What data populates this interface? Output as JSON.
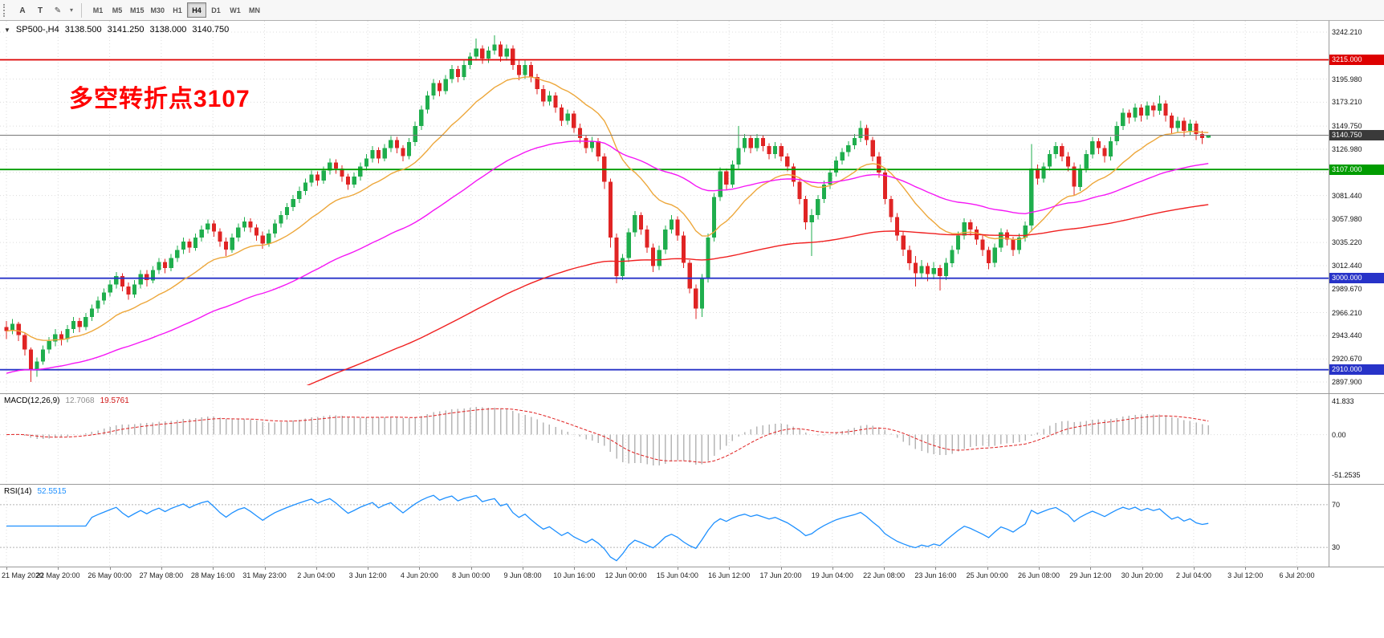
{
  "toolbar": {
    "tools": [
      {
        "name": "text-label-tool-button",
        "label": "A"
      },
      {
        "name": "text-box-tool-button",
        "label": "T"
      },
      {
        "name": "draw-tool-button",
        "label": "✎"
      }
    ],
    "caret": "▾",
    "timeframes": [
      "M1",
      "M5",
      "M15",
      "M30",
      "H1",
      "H4",
      "D1",
      "W1",
      "MN"
    ],
    "active_timeframe": "H4"
  },
  "chart_header": {
    "dropdown_icon": "▼",
    "symbol": "SP500-,H4",
    "open": "3138.500",
    "high": "3141.250",
    "low": "3138.000",
    "close": "3140.750"
  },
  "annotation": {
    "text": "多空转折点3107",
    "color": "#ff0000"
  },
  "price_line": {
    "value": 3140.75,
    "label": "3140.750",
    "box_color": "#3a3a3a"
  },
  "hlines": [
    {
      "value": 3215.0,
      "label": "3215.000",
      "color": "#dd0000"
    },
    {
      "value": 3107.0,
      "label": "3107.000",
      "color": "#009c00"
    },
    {
      "value": 3000.0,
      "label": "3000.000",
      "color": "#2733c8"
    },
    {
      "value": 2910.0,
      "label": "2910.000",
      "color": "#2733c8"
    }
  ],
  "price_axis": {
    "labels": [
      "3242.210",
      "3195.980",
      "3173.210",
      "3149.750",
      "3126.980",
      "3104.220",
      "3081.440",
      "3057.980",
      "3035.220",
      "3012.440",
      "2989.670",
      "2966.210",
      "2943.440",
      "2920.670",
      "2897.900"
    ]
  },
  "time_axis": {
    "labels": [
      "21 May 2020",
      "22 May 20:00",
      "26 May 00:00",
      "27 May 08:00",
      "28 May 16:00",
      "31 May 23:00",
      "2 Jun 04:00",
      "3 Jun 12:00",
      "4 Jun 20:00",
      "8 Jun 00:00",
      "9 Jun 08:00",
      "10 Jun 16:00",
      "12 Jun 00:00",
      "15 Jun 04:00",
      "16 Jun 12:00",
      "17 Jun 20:00",
      "19 Jun 04:00",
      "22 Jun 08:00",
      "23 Jun 16:00",
      "25 Jun 00:00",
      "26 Jun 08:00",
      "29 Jun 12:00",
      "30 Jun 20:00",
      "2 Jul 04:00",
      "3 Jul 12:00",
      "6 Jul 20:00"
    ]
  },
  "macd": {
    "title": "MACD(12,26,9)",
    "main_value": "12.7068",
    "signal_value": "19.5761",
    "axis_labels": [
      "41.833",
      "0.00",
      "-51.2535"
    ],
    "params": {
      "fast": 12,
      "slow": 26,
      "signal": 9
    },
    "range": {
      "max": 45,
      "min": -57
    },
    "histogram_color": "#b6b6b6",
    "signal_color": "#e02020"
  },
  "rsi": {
    "title": "RSI(14)",
    "value": "52.5515",
    "period": 14,
    "levels": [
      "70",
      "30"
    ],
    "line_color": "#1e90ff",
    "range": {
      "max": 85,
      "min": 15
    }
  },
  "chart_data": {
    "type": "candlestick",
    "symbol": "SP500-",
    "timeframe": "H4",
    "ylim": [
      2897.9,
      3242.21
    ],
    "colors": {
      "bull": "#1fae4d",
      "bear": "#e02424"
    },
    "moving_averages": [
      {
        "name": "fast-ma",
        "period": 18,
        "color": "#eda73b",
        "seed": null
      },
      {
        "name": "mid-ma",
        "period": 60,
        "color": "#f516f5",
        "seed": 2905
      },
      {
        "name": "slow-ma",
        "period": 160,
        "color": "#f02020",
        "seed": 2790
      }
    ],
    "candles": [
      [
        2952,
        2958,
        2940,
        2948
      ],
      [
        2948,
        2960,
        2945,
        2955
      ],
      [
        2955,
        2957,
        2938,
        2944
      ],
      [
        2944,
        2946,
        2924,
        2930
      ],
      [
        2930,
        2932,
        2898,
        2910
      ],
      [
        2910,
        2922,
        2903,
        2918
      ],
      [
        2918,
        2934,
        2915,
        2930
      ],
      [
        2930,
        2942,
        2926,
        2938
      ],
      [
        2938,
        2950,
        2933,
        2945
      ],
      [
        2945,
        2948,
        2934,
        2940
      ],
      [
        2940,
        2954,
        2937,
        2950
      ],
      [
        2950,
        2962,
        2946,
        2958
      ],
      [
        2958,
        2961,
        2947,
        2952
      ],
      [
        2952,
        2966,
        2949,
        2962
      ],
      [
        2962,
        2974,
        2958,
        2970
      ],
      [
        2970,
        2982,
        2966,
        2978
      ],
      [
        2978,
        2990,
        2974,
        2986
      ],
      [
        2986,
        2998,
        2982,
        2994
      ],
      [
        2994,
        3006,
        2990,
        3002
      ],
      [
        3002,
        3005,
        2987,
        2992
      ],
      [
        2992,
        2996,
        2979,
        2984
      ],
      [
        2984,
        2998,
        2981,
        2994
      ],
      [
        2994,
        3008,
        2990,
        3004
      ],
      [
        3004,
        3008,
        2992,
        2998
      ],
      [
        2998,
        3012,
        2995,
        3008
      ],
      [
        3008,
        3020,
        3004,
        3016
      ],
      [
        3016,
        3019,
        3005,
        3010
      ],
      [
        3010,
        3024,
        3007,
        3020
      ],
      [
        3020,
        3032,
        3016,
        3028
      ],
      [
        3028,
        3040,
        3024,
        3036
      ],
      [
        3036,
        3039,
        3025,
        3030
      ],
      [
        3030,
        3044,
        3027,
        3040
      ],
      [
        3040,
        3052,
        3036,
        3048
      ],
      [
        3048,
        3058,
        3044,
        3054
      ],
      [
        3054,
        3057,
        3041,
        3046
      ],
      [
        3046,
        3049,
        3031,
        3036
      ],
      [
        3036,
        3040,
        3022,
        3028
      ],
      [
        3028,
        3044,
        3025,
        3040
      ],
      [
        3040,
        3054,
        3036,
        3050
      ],
      [
        3050,
        3060,
        3046,
        3056
      ],
      [
        3056,
        3059,
        3045,
        3050
      ],
      [
        3050,
        3053,
        3037,
        3042
      ],
      [
        3042,
        3046,
        3029,
        3034
      ],
      [
        3034,
        3048,
        3031,
        3044
      ],
      [
        3044,
        3058,
        3040,
        3054
      ],
      [
        3054,
        3066,
        3050,
        3062
      ],
      [
        3062,
        3074,
        3058,
        3070
      ],
      [
        3070,
        3082,
        3066,
        3078
      ],
      [
        3078,
        3090,
        3074,
        3086
      ],
      [
        3086,
        3098,
        3082,
        3094
      ],
      [
        3094,
        3106,
        3090,
        3102
      ],
      [
        3102,
        3105,
        3091,
        3096
      ],
      [
        3096,
        3110,
        3093,
        3106
      ],
      [
        3106,
        3118,
        3102,
        3114
      ],
      [
        3114,
        3117,
        3103,
        3108
      ],
      [
        3108,
        3111,
        3095,
        3100
      ],
      [
        3100,
        3103,
        3087,
        3092
      ],
      [
        3092,
        3104,
        3089,
        3100
      ],
      [
        3100,
        3114,
        3096,
        3110
      ],
      [
        3110,
        3122,
        3106,
        3118
      ],
      [
        3118,
        3130,
        3114,
        3126
      ],
      [
        3126,
        3129,
        3113,
        3118
      ],
      [
        3118,
        3132,
        3115,
        3128
      ],
      [
        3128,
        3140,
        3124,
        3136
      ],
      [
        3136,
        3139,
        3123,
        3128
      ],
      [
        3128,
        3131,
        3115,
        3120
      ],
      [
        3120,
        3138,
        3117,
        3134
      ],
      [
        3134,
        3154,
        3130,
        3150
      ],
      [
        3150,
        3170,
        3146,
        3166
      ],
      [
        3166,
        3184,
        3162,
        3180
      ],
      [
        3180,
        3196,
        3176,
        3192
      ],
      [
        3192,
        3195,
        3179,
        3184
      ],
      [
        3184,
        3200,
        3181,
        3196
      ],
      [
        3196,
        3210,
        3192,
        3206
      ],
      [
        3206,
        3209,
        3193,
        3198
      ],
      [
        3198,
        3214,
        3195,
        3210
      ],
      [
        3210,
        3222,
        3206,
        3218
      ],
      [
        3218,
        3236,
        3214,
        3226
      ],
      [
        3226,
        3229,
        3211,
        3216
      ],
      [
        3216,
        3228,
        3212,
        3224
      ],
      [
        3224,
        3239,
        3220,
        3230
      ],
      [
        3230,
        3233,
        3213,
        3218
      ],
      [
        3218,
        3230,
        3214,
        3226
      ],
      [
        3226,
        3229,
        3205,
        3210
      ],
      [
        3210,
        3214,
        3195,
        3200
      ],
      [
        3200,
        3214,
        3196,
        3210
      ],
      [
        3210,
        3213,
        3193,
        3198
      ],
      [
        3198,
        3201,
        3181,
        3186
      ],
      [
        3186,
        3190,
        3169,
        3174
      ],
      [
        3174,
        3184,
        3170,
        3180
      ],
      [
        3180,
        3183,
        3163,
        3168
      ],
      [
        3168,
        3171,
        3150,
        3155
      ],
      [
        3155,
        3166,
        3151,
        3162
      ],
      [
        3162,
        3165,
        3143,
        3148
      ],
      [
        3148,
        3152,
        3133,
        3138
      ],
      [
        3138,
        3141,
        3123,
        3128
      ],
      [
        3128,
        3139,
        3124,
        3135
      ],
      [
        3135,
        3138,
        3115,
        3120
      ],
      [
        3120,
        3123,
        3088,
        3095
      ],
      [
        3095,
        3098,
        3030,
        3040
      ],
      [
        3040,
        3044,
        2995,
        3002
      ],
      [
        3002,
        3024,
        2998,
        3020
      ],
      [
        3020,
        3049,
        3016,
        3045
      ],
      [
        3045,
        3066,
        3041,
        3062
      ],
      [
        3062,
        3065,
        3043,
        3048
      ],
      [
        3048,
        3052,
        3025,
        3030
      ],
      [
        3030,
        3034,
        3006,
        3012
      ],
      [
        3012,
        3032,
        3008,
        3028
      ],
      [
        3028,
        3052,
        3024,
        3048
      ],
      [
        3048,
        3062,
        3044,
        3058
      ],
      [
        3058,
        3061,
        3037,
        3042
      ],
      [
        3042,
        3046,
        3010,
        3015
      ],
      [
        3015,
        3018,
        2985,
        2990
      ],
      [
        2990,
        2994,
        2960,
        2970
      ],
      [
        2970,
        3004,
        2962,
        3000
      ],
      [
        3000,
        3044,
        2996,
        3040
      ],
      [
        3040,
        3084,
        3036,
        3080
      ],
      [
        3080,
        3109,
        3076,
        3105
      ],
      [
        3105,
        3108,
        3087,
        3092
      ],
      [
        3092,
        3116,
        3089,
        3112
      ],
      [
        3112,
        3150,
        3108,
        3128
      ],
      [
        3128,
        3142,
        3124,
        3138
      ],
      [
        3138,
        3141,
        3123,
        3128
      ],
      [
        3128,
        3142,
        3125,
        3138
      ],
      [
        3138,
        3141,
        3125,
        3130
      ],
      [
        3130,
        3133,
        3117,
        3122
      ],
      [
        3122,
        3134,
        3118,
        3130
      ],
      [
        3130,
        3133,
        3115,
        3120
      ],
      [
        3120,
        3123,
        3105,
        3110
      ],
      [
        3110,
        3113,
        3090,
        3095
      ],
      [
        3095,
        3098,
        3073,
        3078
      ],
      [
        3078,
        3081,
        3048,
        3055
      ],
      [
        3055,
        3068,
        3022,
        3062
      ],
      [
        3062,
        3082,
        3058,
        3078
      ],
      [
        3078,
        3096,
        3074,
        3092
      ],
      [
        3092,
        3108,
        3088,
        3104
      ],
      [
        3104,
        3120,
        3100,
        3116
      ],
      [
        3116,
        3128,
        3112,
        3124
      ],
      [
        3124,
        3135,
        3120,
        3131
      ],
      [
        3131,
        3142,
        3127,
        3138
      ],
      [
        3138,
        3155,
        3134,
        3148
      ],
      [
        3148,
        3151,
        3131,
        3136
      ],
      [
        3136,
        3139,
        3115,
        3120
      ],
      [
        3120,
        3124,
        3099,
        3104
      ],
      [
        3104,
        3108,
        3073,
        3078
      ],
      [
        3078,
        3081,
        3055,
        3060
      ],
      [
        3060,
        3064,
        3037,
        3042
      ],
      [
        3042,
        3046,
        3022,
        3028
      ],
      [
        3028,
        3032,
        3008,
        3015
      ],
      [
        3015,
        3022,
        2992,
        3005
      ],
      [
        3005,
        3018,
        3000,
        3012
      ],
      [
        3012,
        3015,
        2997,
        3004
      ],
      [
        3004,
        3016,
        2999,
        3010
      ],
      [
        3010,
        3013,
        2988,
        3002
      ],
      [
        3002,
        3020,
        2998,
        3015
      ],
      [
        3015,
        3032,
        3011,
        3028
      ],
      [
        3028,
        3046,
        3024,
        3042
      ],
      [
        3042,
        3059,
        3038,
        3055
      ],
      [
        3055,
        3058,
        3042,
        3048
      ],
      [
        3048,
        3051,
        3033,
        3038
      ],
      [
        3038,
        3042,
        3022,
        3028
      ],
      [
        3028,
        3031,
        3009,
        3015
      ],
      [
        3015,
        3034,
        3011,
        3030
      ],
      [
        3030,
        3049,
        3026,
        3045
      ],
      [
        3045,
        3048,
        3032,
        3038
      ],
      [
        3038,
        3041,
        3022,
        3028
      ],
      [
        3028,
        3044,
        3024,
        3040
      ],
      [
        3040,
        3056,
        3036,
        3052
      ],
      [
        3052,
        3132,
        3046,
        3108
      ],
      [
        3108,
        3112,
        3092,
        3098
      ],
      [
        3098,
        3114,
        3094,
        3110
      ],
      [
        3110,
        3126,
        3106,
        3122
      ],
      [
        3122,
        3134,
        3118,
        3130
      ],
      [
        3130,
        3133,
        3115,
        3120
      ],
      [
        3120,
        3124,
        3105,
        3110
      ],
      [
        3110,
        3114,
        3082,
        3090
      ],
      [
        3090,
        3112,
        3086,
        3108
      ],
      [
        3108,
        3126,
        3104,
        3122
      ],
      [
        3122,
        3139,
        3118,
        3135
      ],
      [
        3135,
        3138,
        3122,
        3128
      ],
      [
        3128,
        3131,
        3114,
        3120
      ],
      [
        3120,
        3139,
        3116,
        3135
      ],
      [
        3135,
        3154,
        3131,
        3150
      ],
      [
        3150,
        3167,
        3146,
        3163
      ],
      [
        3163,
        3166,
        3152,
        3158
      ],
      [
        3158,
        3172,
        3154,
        3168
      ],
      [
        3168,
        3171,
        3154,
        3160
      ],
      [
        3160,
        3174,
        3156,
        3170
      ],
      [
        3170,
        3173,
        3159,
        3165
      ],
      [
        3165,
        3180,
        3161,
        3172
      ],
      [
        3172,
        3175,
        3154,
        3160
      ],
      [
        3160,
        3163,
        3142,
        3148
      ],
      [
        3148,
        3159,
        3144,
        3155
      ],
      [
        3155,
        3158,
        3139,
        3145
      ],
      [
        3145,
        3156,
        3141,
        3152
      ],
      [
        3152,
        3155,
        3136,
        3142
      ],
      [
        3142,
        3145,
        3132,
        3138
      ],
      [
        3138.5,
        3141.25,
        3138,
        3140.75
      ]
    ]
  }
}
